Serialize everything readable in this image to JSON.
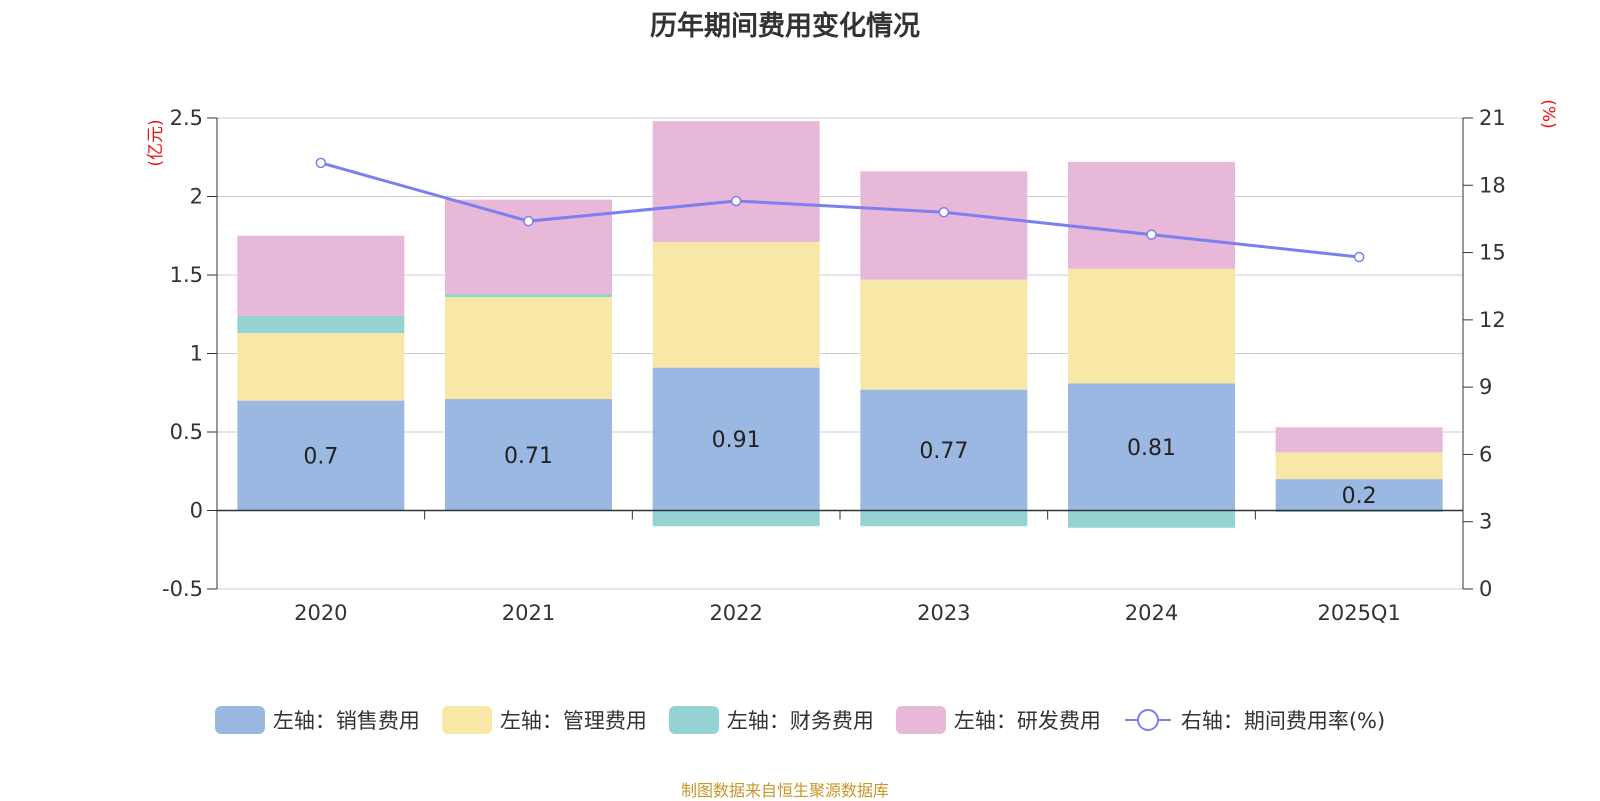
{
  "chart_data": {
    "type": "bar",
    "title": "历年期间费用变化情况",
    "categories": [
      "2020",
      "2021",
      "2022",
      "2023",
      "2024",
      "2025Q1"
    ],
    "y_left": {
      "unit": "(亿元)",
      "min": -0.5,
      "max": 2.5,
      "ticks": [
        "-0.5",
        "0",
        "0.5",
        "1",
        "1.5",
        "2",
        "2.5"
      ]
    },
    "y_right": {
      "unit": "(%)",
      "min": 0,
      "max": 21,
      "ticks": [
        "0",
        "3",
        "6",
        "9",
        "12",
        "15",
        "18",
        "21"
      ]
    },
    "series": [
      {
        "name": "左轴：销售费用",
        "type": "bar",
        "color": "#9bb8e2",
        "values": [
          0.7,
          0.71,
          0.91,
          0.77,
          0.81,
          0.2
        ],
        "labels": [
          "0.7",
          "0.71",
          "0.91",
          "0.77",
          "0.81",
          "0.2"
        ]
      },
      {
        "name": "左轴：管理费用",
        "type": "bar",
        "color": "#f8e8a8",
        "values": [
          0.43,
          0.65,
          0.8,
          0.7,
          0.73,
          0.17
        ]
      },
      {
        "name": "左轴：财务费用",
        "type": "bar",
        "color": "#95d3d3",
        "values": [
          0.11,
          0.02,
          -0.1,
          -0.1,
          -0.11,
          -0.01
        ]
      },
      {
        "name": "左轴：研发费用",
        "type": "bar",
        "color": "#e7b8d8",
        "values": [
          0.51,
          0.6,
          0.77,
          0.69,
          0.68,
          0.16
        ]
      },
      {
        "name": "右轴：期间费用率(%)",
        "type": "line",
        "color": "#7b7ff0",
        "values": [
          19.0,
          16.4,
          17.3,
          16.8,
          15.8,
          14.8
        ]
      }
    ],
    "grid": true,
    "legend_position": "bottom"
  },
  "source": "制图数据来自恒生聚源数据库"
}
